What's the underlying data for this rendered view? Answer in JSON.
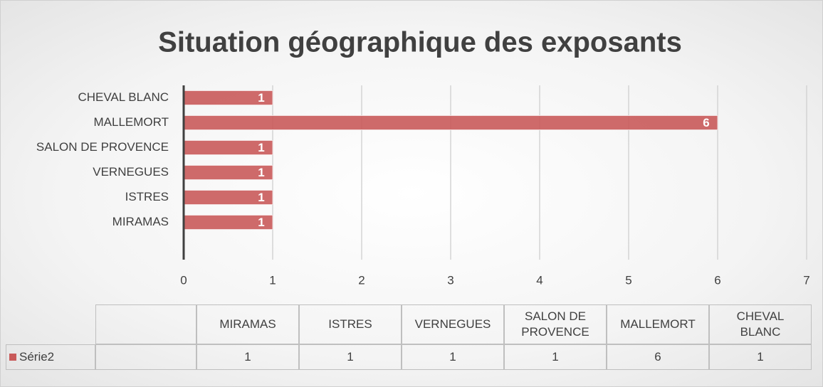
{
  "chart_data": {
    "type": "barh",
    "title": "Situation géographique des exposants",
    "categories": [
      "MIRAMAS",
      "ISTRES",
      "VERNEGUES",
      "SALON DE PROVENCE",
      "MALLEMORT",
      "CHEVAL BLANC"
    ],
    "series": [
      {
        "name": "Série2",
        "color": "#c95a5a",
        "values": [
          1,
          1,
          1,
          1,
          6,
          1
        ]
      }
    ],
    "xlim": [
      0,
      7
    ],
    "xticks": [
      0,
      1,
      2,
      3,
      4,
      5,
      6,
      7
    ],
    "grid": true,
    "data_table": true
  }
}
